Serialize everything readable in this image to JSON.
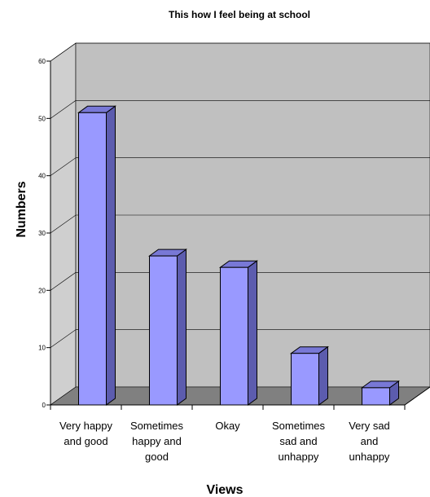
{
  "chart_data": {
    "type": "bar",
    "title": "This how I feel being at school",
    "xlabel": "Views",
    "ylabel": "Numbers",
    "categories": [
      [
        "Very happy",
        "and good"
      ],
      [
        "Sometimes",
        "happy and",
        "good"
      ],
      [
        "Okay"
      ],
      [
        "Sometimes",
        "sad and",
        "unhappy"
      ],
      [
        "Very sad",
        "and",
        "unhappy"
      ]
    ],
    "values": [
      51,
      26,
      24,
      9,
      3
    ],
    "ylim": [
      0,
      60
    ],
    "yticks": [
      0,
      10,
      20,
      30,
      40,
      50,
      60
    ],
    "grid": true,
    "legend": "none",
    "colors": {
      "bar_front": "#9999ff",
      "bar_side": "#5c5cae",
      "bar_top": "#7878d6",
      "back_wall": "#c0c0c0",
      "side_wall": "#cfcfcf",
      "floor": "#808080",
      "grid": "#000000"
    }
  }
}
